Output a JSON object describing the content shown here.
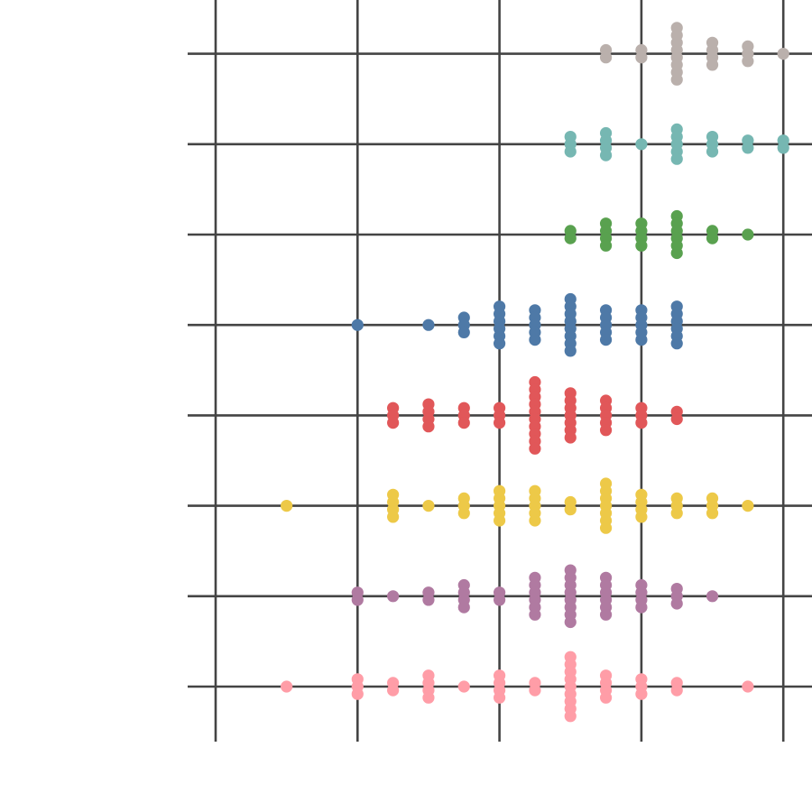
{
  "chart_data": {
    "type": "scatter",
    "style": "swarm",
    "title": "",
    "xlabel": "",
    "ylabel": "",
    "xlim": [
      -0.2,
      4.2
    ],
    "x_gridlines": [
      0,
      1,
      2,
      3,
      4
    ],
    "grid": true,
    "legend": "none",
    "tick_labels_shown": false,
    "series": [
      {
        "color": "#ff9da7",
        "points": [
          [
            0.5,
            1
          ],
          [
            1.0,
            3
          ],
          [
            1.25,
            2
          ],
          [
            1.5,
            4
          ],
          [
            1.75,
            1
          ],
          [
            2.0,
            4
          ],
          [
            2.25,
            2
          ],
          [
            2.5,
            9
          ],
          [
            2.75,
            4
          ],
          [
            3.0,
            3
          ],
          [
            3.25,
            2
          ],
          [
            3.75,
            1
          ]
        ]
      },
      {
        "color": "#b07aa1",
        "points": [
          [
            1.0,
            2
          ],
          [
            1.25,
            1
          ],
          [
            1.5,
            2
          ],
          [
            1.75,
            4
          ],
          [
            2.0,
            2
          ],
          [
            2.25,
            6
          ],
          [
            2.5,
            8
          ],
          [
            2.75,
            6
          ],
          [
            3.0,
            4
          ],
          [
            3.25,
            3
          ],
          [
            3.5,
            1
          ]
        ]
      },
      {
        "color": "#edc948",
        "points": [
          [
            0.5,
            1
          ],
          [
            1.25,
            4
          ],
          [
            1.5,
            1
          ],
          [
            1.75,
            3
          ],
          [
            2.0,
            5
          ],
          [
            2.25,
            5
          ],
          [
            2.5,
            2
          ],
          [
            2.75,
            7
          ],
          [
            3.0,
            4
          ],
          [
            3.25,
            3
          ],
          [
            3.5,
            3
          ],
          [
            3.75,
            1
          ]
        ]
      },
      {
        "color": "#e15759",
        "points": [
          [
            1.25,
            3
          ],
          [
            1.5,
            4
          ],
          [
            1.75,
            3
          ],
          [
            2.0,
            3
          ],
          [
            2.25,
            10
          ],
          [
            2.5,
            7
          ],
          [
            2.75,
            5
          ],
          [
            3.0,
            3
          ],
          [
            3.25,
            2
          ]
        ]
      },
      {
        "color": "#4e79a7",
        "points": [
          [
            1.0,
            1
          ],
          [
            1.5,
            1
          ],
          [
            1.75,
            3
          ],
          [
            2.0,
            6
          ],
          [
            2.25,
            5
          ],
          [
            2.5,
            8
          ],
          [
            2.75,
            5
          ],
          [
            3.0,
            5
          ],
          [
            3.25,
            6
          ]
        ]
      },
      {
        "color": "#59a14f",
        "points": [
          [
            2.5,
            2
          ],
          [
            2.75,
            4
          ],
          [
            3.0,
            4
          ],
          [
            3.25,
            6
          ],
          [
            3.5,
            2
          ],
          [
            3.75,
            1
          ]
        ]
      },
      {
        "color": "#76b7b2",
        "points": [
          [
            2.5,
            3
          ],
          [
            2.75,
            4
          ],
          [
            3.0,
            1
          ],
          [
            3.25,
            5
          ],
          [
            3.5,
            3
          ],
          [
            3.75,
            2
          ],
          [
            4.0,
            2
          ]
        ]
      },
      {
        "color": "#bab0ac",
        "points": [
          [
            2.75,
            2
          ],
          [
            3.0,
            2
          ],
          [
            3.25,
            8
          ],
          [
            3.5,
            4
          ],
          [
            3.75,
            3
          ],
          [
            4.0,
            1
          ]
        ]
      }
    ]
  }
}
